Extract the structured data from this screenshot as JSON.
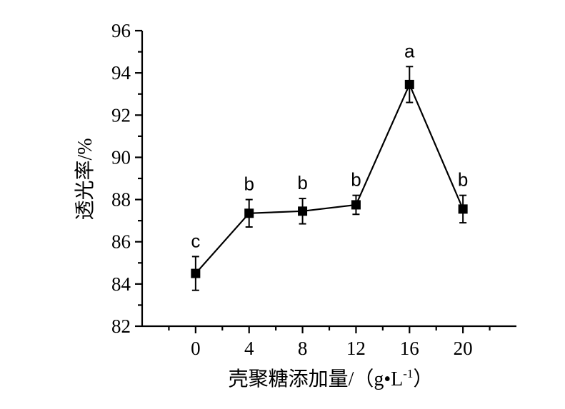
{
  "chart_data": {
    "type": "line",
    "x": [
      0,
      4,
      8,
      12,
      16,
      20
    ],
    "xlim": [
      -4,
      24
    ],
    "x_ticks": [
      0,
      4,
      8,
      12,
      16,
      20
    ],
    "x_tick_labels": [
      "0",
      "4",
      "8",
      "12",
      "16",
      "20"
    ],
    "ylim": [
      82,
      96
    ],
    "y_ticks": [
      82,
      84,
      86,
      88,
      90,
      92,
      94,
      96
    ],
    "y_tick_labels": [
      "82",
      "84",
      "86",
      "88",
      "90",
      "92",
      "94",
      "96"
    ],
    "y_minor_step": 1,
    "x_minor_step": 2,
    "series": [
      {
        "values": [
          84.5,
          87.35,
          87.45,
          87.75,
          93.45,
          87.55
        ],
        "errors": [
          0.8,
          0.65,
          0.6,
          0.45,
          0.85,
          0.65
        ],
        "labels": [
          "c",
          "b",
          "b",
          "b",
          "a",
          "b"
        ],
        "marker": "square",
        "color": "#000000"
      }
    ],
    "xlabel": "壳聚糖添加量/（g•L",
    "xlabel_sup": "-1",
    "xlabel_tail": "）",
    "ylabel": "透光率/%",
    "grid": false,
    "legend": "none"
  }
}
